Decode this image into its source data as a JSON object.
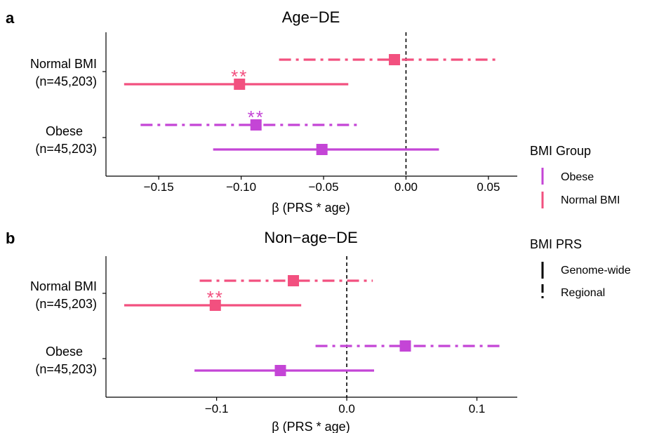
{
  "colors": {
    "obese": "#C445D6",
    "normal": "#F2507F"
  },
  "legend": {
    "group_title": "BMI Group",
    "group_items": [
      {
        "label": "Obese",
        "color": "#C445D6"
      },
      {
        "label": "Normal BMI",
        "color": "#F2507F"
      }
    ],
    "prs_title": "BMI PRS",
    "prs_items": [
      {
        "label": "Genome-wide",
        "line": "solid"
      },
      {
        "label": "Regional",
        "line": "dashed"
      }
    ]
  },
  "chart_data": [
    {
      "panel_label": "a",
      "type": "forest",
      "title": "Age−DE",
      "xlabel": "β (PRS * age)",
      "xlim": [
        -0.182,
        0.0675
      ],
      "xticks": [
        -0.15,
        -0.1,
        -0.05,
        0.0,
        0.05
      ],
      "xtick_labels": [
        "−0.15",
        "−0.10",
        "−0.05",
        "0.00",
        "0.05"
      ],
      "reference_line": 0,
      "groups": [
        {
          "label": "Normal BMI",
          "sublabel": "(n=45,203)"
        },
        {
          "label": "Obese",
          "sublabel": "(n=45,203)"
        }
      ],
      "rows": [
        {
          "group": "Normal BMI",
          "prs": "Regional",
          "estimate": -0.007,
          "lo": -0.077,
          "hi": 0.055,
          "sig": ""
        },
        {
          "group": "Normal BMI",
          "prs": "Genome-wide",
          "estimate": -0.101,
          "lo": -0.171,
          "hi": -0.035,
          "sig": "**"
        },
        {
          "group": "Obese",
          "prs": "Regional",
          "estimate": -0.091,
          "lo": -0.161,
          "hi": -0.028,
          "sig": "**"
        },
        {
          "group": "Obese",
          "prs": "Genome-wide",
          "estimate": -0.051,
          "lo": -0.117,
          "hi": 0.02,
          "sig": ""
        }
      ]
    },
    {
      "panel_label": "b",
      "type": "forest",
      "title": "Non−age−DE",
      "xlabel": "β (PRS * age)",
      "xlim": [
        -0.185,
        0.131
      ],
      "xticks": [
        -0.1,
        0.0,
        0.1
      ],
      "xtick_labels": [
        "−0.1",
        "0.0",
        "0.1"
      ],
      "reference_line": 0,
      "groups": [
        {
          "label": "Normal BMI",
          "sublabel": "(n=45,203)"
        },
        {
          "label": "Obese",
          "sublabel": "(n=45,203)"
        }
      ],
      "rows": [
        {
          "group": "Normal BMI",
          "prs": "Regional",
          "estimate": -0.041,
          "lo": -0.113,
          "hi": 0.02,
          "sig": ""
        },
        {
          "group": "Normal BMI",
          "prs": "Genome-wide",
          "estimate": -0.101,
          "lo": -0.171,
          "hi": -0.035,
          "sig": "**"
        },
        {
          "group": "Obese",
          "prs": "Regional",
          "estimate": 0.045,
          "lo": -0.024,
          "hi": 0.118,
          "sig": ""
        },
        {
          "group": "Obese",
          "prs": "Genome-wide",
          "estimate": -0.051,
          "lo": -0.117,
          "hi": 0.021,
          "sig": ""
        }
      ]
    }
  ]
}
